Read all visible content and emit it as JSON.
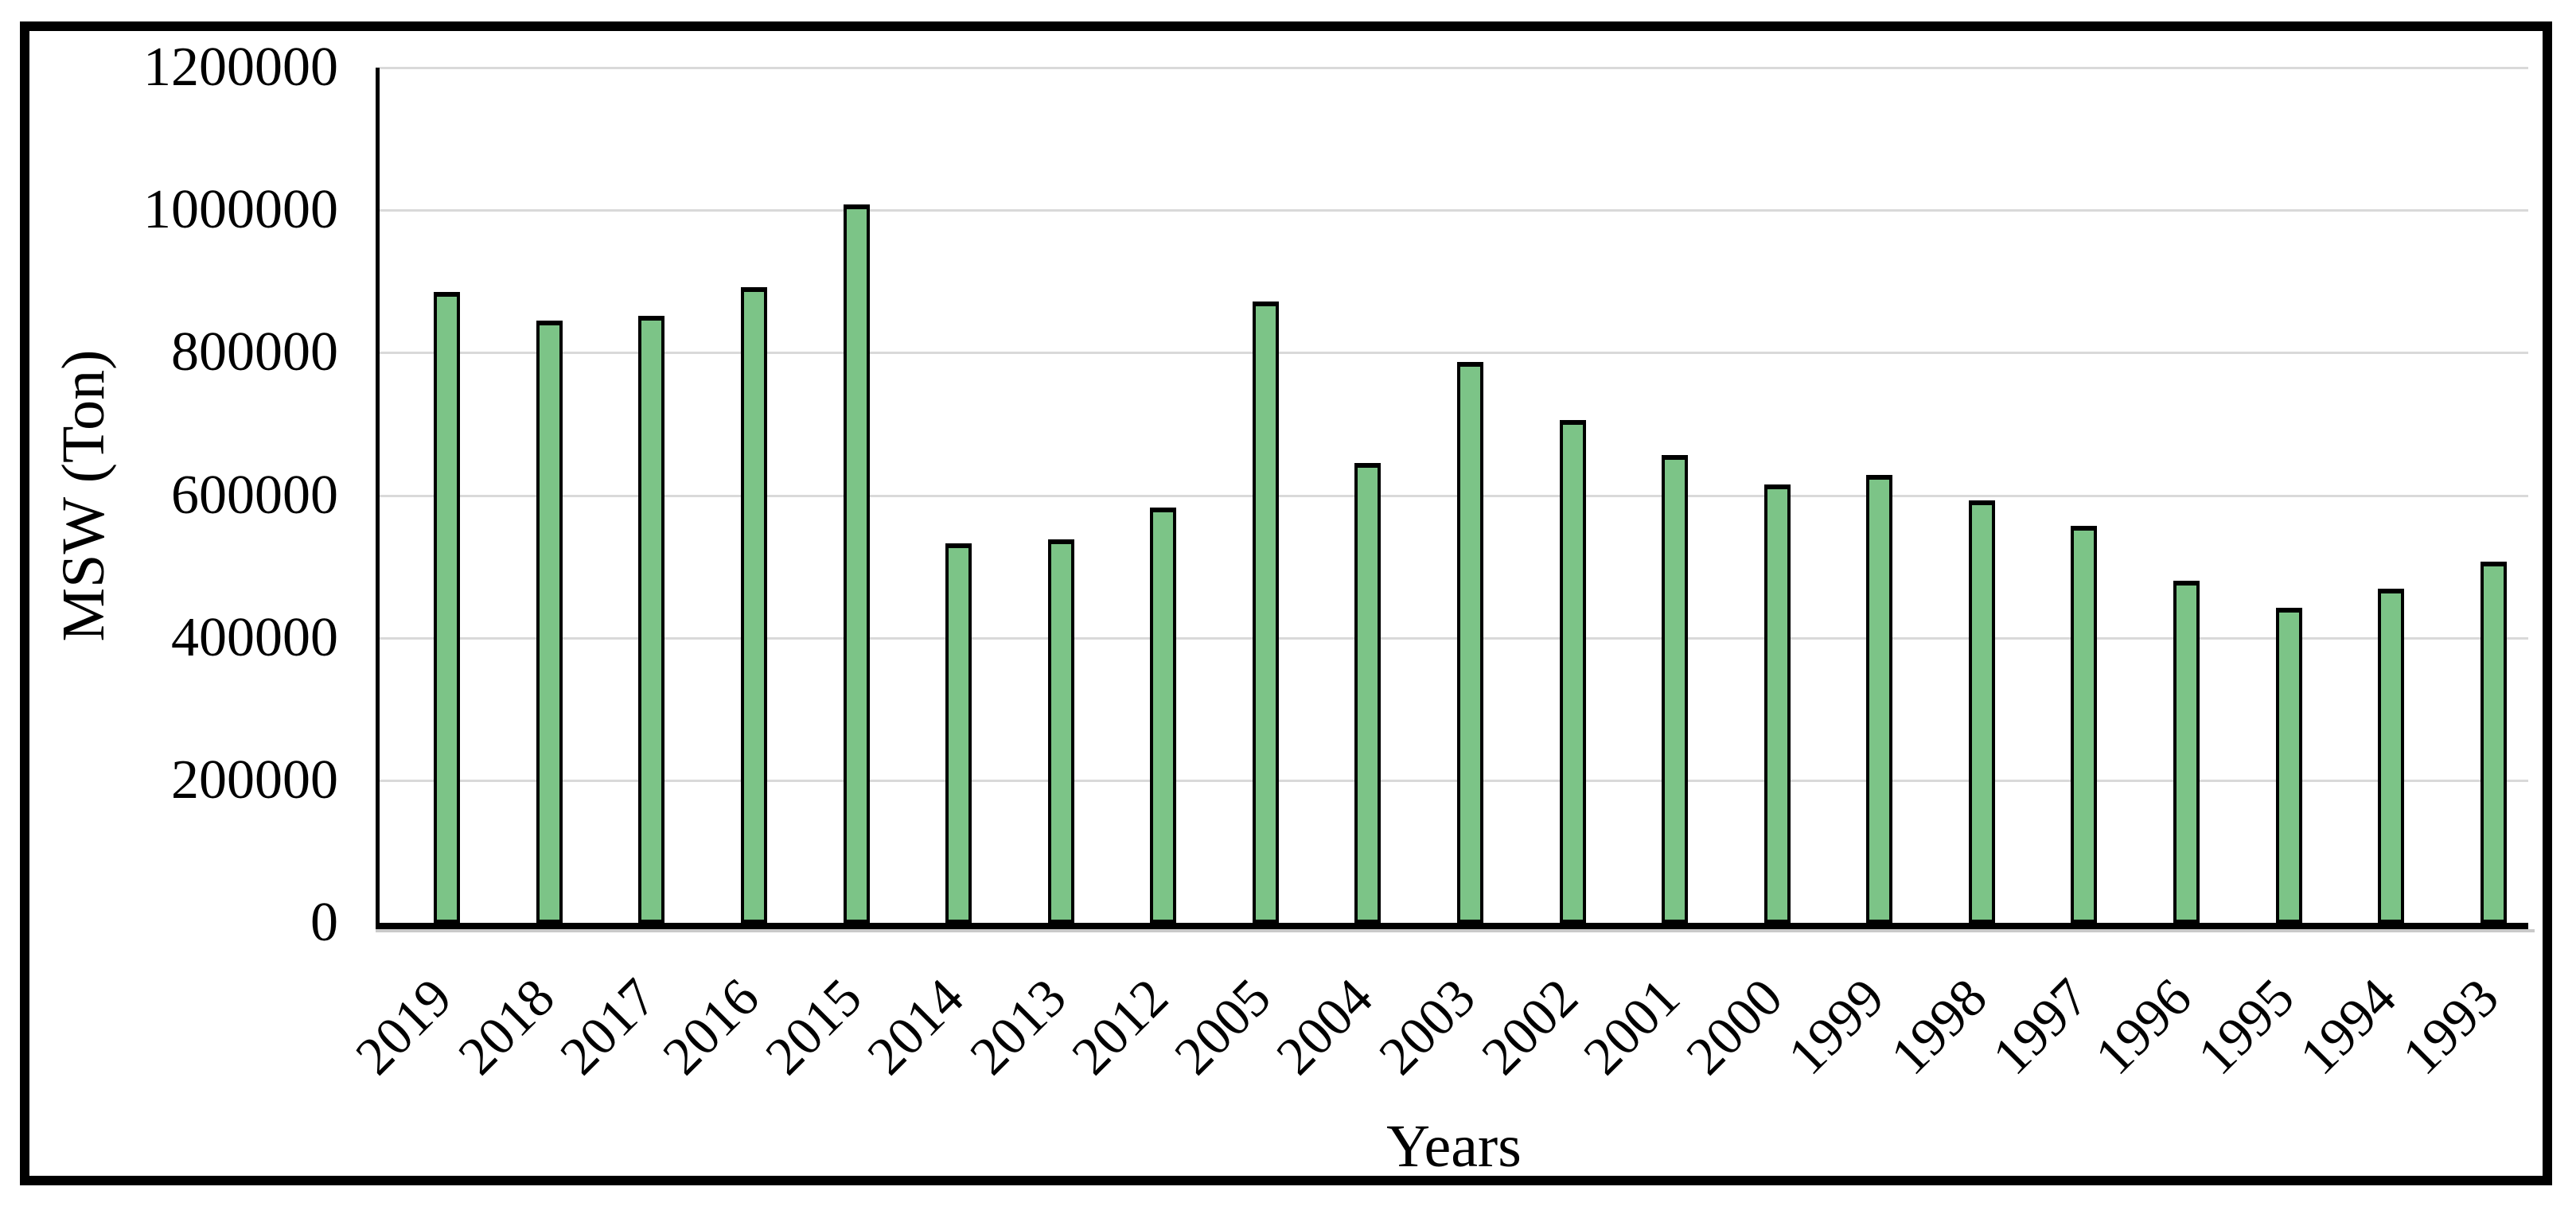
{
  "chart_data": {
    "type": "bar",
    "title": "",
    "xlabel": "Years",
    "ylabel": "MSW (Ton)",
    "categories": [
      "2019",
      "2018",
      "2017",
      "2016",
      "2015",
      "2014",
      "2013",
      "2012",
      "2005",
      "2004",
      "2003",
      "2002",
      "2001",
      "2000",
      "1999",
      "1998",
      "1997",
      "1996",
      "1995",
      "1994",
      "1993"
    ],
    "values": [
      885000,
      845000,
      852000,
      892000,
      1008000,
      533000,
      538000,
      583000,
      872000,
      645000,
      787000,
      706000,
      656000,
      615000,
      628000,
      593000,
      557000,
      480000,
      442000,
      469000,
      507000
    ],
    "ylim": [
      0,
      1200000
    ],
    "ytick_step": 200000,
    "ytick_labels": [
      "1200000",
      "1000000",
      "800000",
      "600000",
      "400000",
      "200000",
      "0"
    ],
    "grid": true,
    "legend": false,
    "styles": {
      "bar_fill": "#7CC487",
      "bar_border": "#000000",
      "gridline_color": "#D9D9D9",
      "axis_color": "#000000",
      "frame_border_color": "#000000",
      "background": "#FFFFFF"
    }
  }
}
